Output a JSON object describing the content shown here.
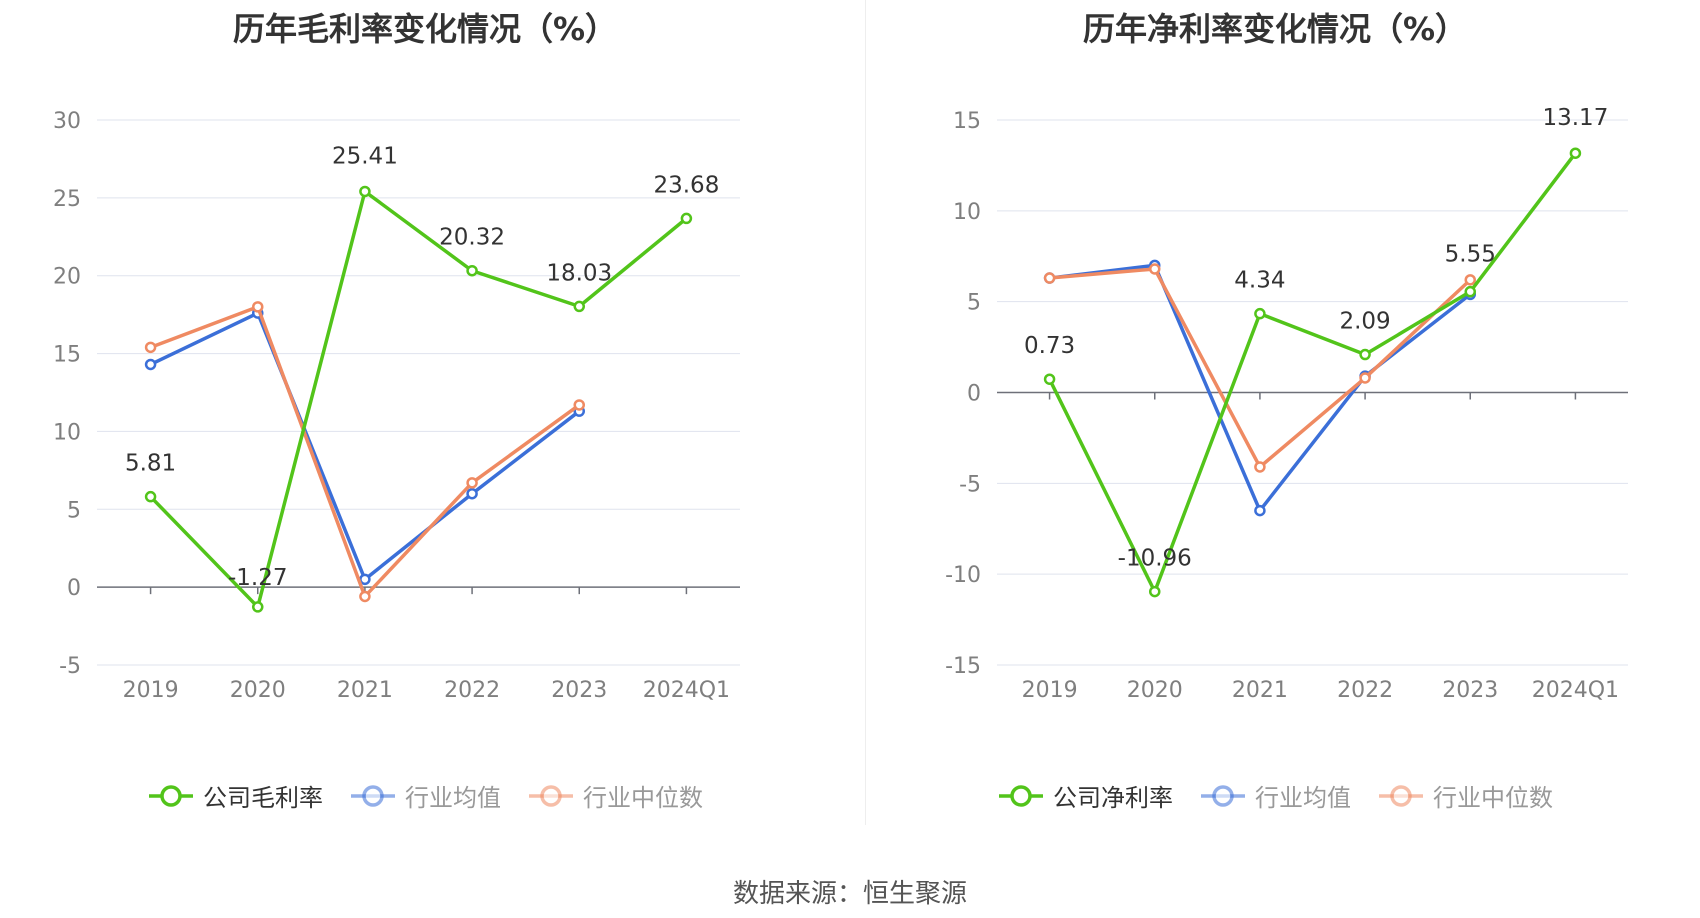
{
  "source_label": "数据来源：恒生聚源",
  "chart_data": [
    {
      "type": "line",
      "title": "历年毛利率变化情况（%）",
      "categories": [
        "2019",
        "2020",
        "2021",
        "2022",
        "2023",
        "2024Q1"
      ],
      "ylim": [
        -5,
        30
      ],
      "yticks": [
        -5,
        0,
        5,
        10,
        15,
        20,
        25,
        30
      ],
      "grid": true,
      "legend_position": "bottom",
      "series": [
        {
          "name": "公司毛利率",
          "color": "#52c41a",
          "values": [
            5.81,
            -1.27,
            25.41,
            20.32,
            18.03,
            23.68
          ],
          "labels": [
            "5.81",
            "-1.27",
            "25.41",
            "20.32",
            "18.03",
            "23.68"
          ]
        },
        {
          "name": "行业均值",
          "color": "#3b6fd8",
          "values": [
            14.3,
            17.6,
            0.5,
            6.0,
            11.3,
            null
          ]
        },
        {
          "name": "行业中位数",
          "color": "#ef8a62",
          "values": [
            15.4,
            18.0,
            -0.6,
            6.7,
            11.7,
            null
          ]
        }
      ]
    },
    {
      "type": "line",
      "title": "历年净利率变化情况（%）",
      "categories": [
        "2019",
        "2020",
        "2021",
        "2022",
        "2023",
        "2024Q1"
      ],
      "ylim": [
        -15,
        15
      ],
      "yticks": [
        -15,
        -10,
        -5,
        0,
        5,
        10,
        15
      ],
      "grid": true,
      "legend_position": "bottom",
      "series": [
        {
          "name": "公司净利率",
          "color": "#52c41a",
          "values": [
            0.73,
            -10.96,
            4.34,
            2.09,
            5.55,
            13.17
          ],
          "labels": [
            "0.73",
            "-10.96",
            "4.34",
            "2.09",
            "5.55",
            "13.17"
          ]
        },
        {
          "name": "行业均值",
          "color": "#3b6fd8",
          "values": [
            6.3,
            7.0,
            -6.5,
            0.9,
            5.4,
            null
          ]
        },
        {
          "name": "行业中位数",
          "color": "#ef8a62",
          "values": [
            6.3,
            6.8,
            -4.1,
            0.8,
            6.2,
            null
          ]
        }
      ]
    }
  ]
}
